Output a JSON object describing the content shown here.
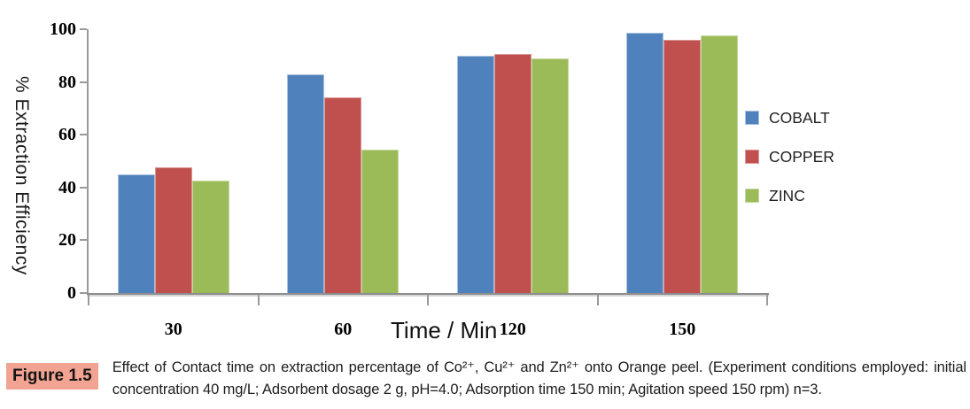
{
  "chart_data": {
    "type": "bar",
    "title": "",
    "xlabel": "Time / Min",
    "ylabel": "% Extraction Efficiency",
    "categories": [
      "30",
      "60",
      "120",
      "150"
    ],
    "series": [
      {
        "name": "COBALT",
        "color": "#4F81BD",
        "border_color": "#A7C0DE",
        "values": [
          45,
          83,
          90,
          98.5
        ]
      },
      {
        "name": "COPPER",
        "color": "#C0504D",
        "border_color": "#D99795",
        "values": [
          47.5,
          74,
          90.5,
          96
        ]
      },
      {
        "name": "ZINC",
        "color": "#9BBB59",
        "border_color": "#C6D8A0",
        "values": [
          42.5,
          54.5,
          89,
          97.5
        ]
      }
    ],
    "ylim": [
      0,
      100
    ],
    "yticks": [
      0,
      20,
      40,
      60,
      80,
      100
    ],
    "legend_position": "right",
    "grid": false,
    "axis_color": "#9a9a9a"
  },
  "caption": {
    "label": "Figure 1.5",
    "label_bg": "#F2A392",
    "text": "Effect of Contact time on extraction percentage of Co²⁺, Cu²⁺ and Zn²⁺ onto Orange peel. (Experiment conditions employed: initial concentration 40 mg/L; Adsorbent dosage 2 g, pH=4.0; Adsorption time 150 min; Agitation speed 150 rpm) n=3."
  }
}
